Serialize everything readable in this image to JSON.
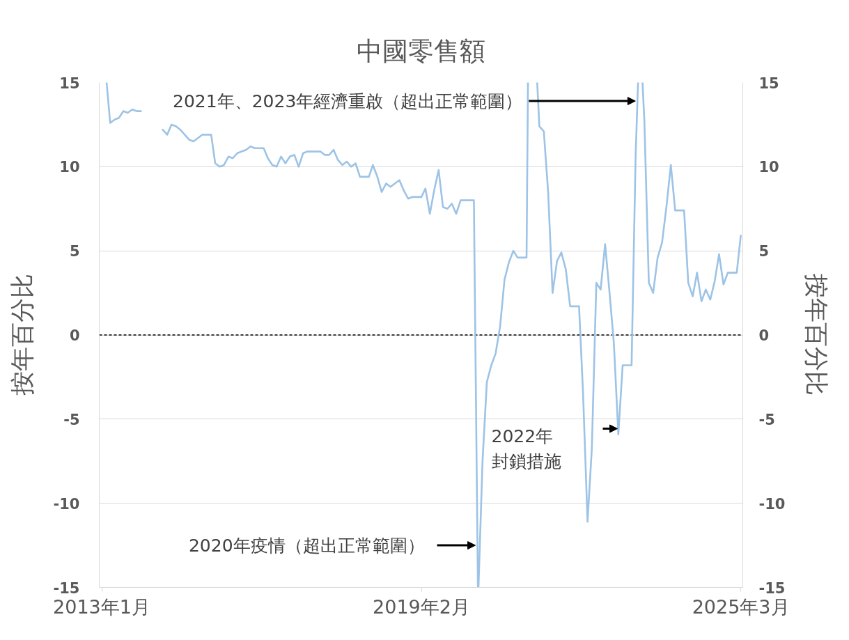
{
  "chart_data": {
    "type": "line",
    "title": "中國零售額",
    "ylabel": "按年百分比",
    "y2label": "按年百分比",
    "x": [
      "2013-02-04",
      "2013-03",
      "2013-04",
      "2013-05",
      "2013-06",
      "2013-07",
      "2013-08",
      "2013-09",
      "2013-10",
      "2013-11",
      "2013-12",
      "2014-01",
      "2014-02",
      "2014-03",
      "2014-04",
      "2014-05",
      "2014-06",
      "2014-07",
      "2014-08",
      "2014-09",
      "2014-10",
      "2014-11",
      "2014-12",
      "2015-01",
      "2015-02",
      "2015-03",
      "2015-04",
      "2015-05",
      "2015-06",
      "2015-07",
      "2015-08",
      "2015-09",
      "2015-10",
      "2015-11",
      "2015-12",
      "2016-01",
      "2016-02",
      "2016-03",
      "2016-04",
      "2016-05",
      "2016-06",
      "2016-07",
      "2016-08",
      "2016-09",
      "2016-10",
      "2016-11",
      "2016-12",
      "2017-01",
      "2017-02",
      "2017-03",
      "2017-04",
      "2017-05",
      "2017-06",
      "2017-07",
      "2017-08",
      "2017-09",
      "2017-10",
      "2017-11",
      "2017-12",
      "2018-01",
      "2018-02",
      "2018-03",
      "2018-04",
      "2018-05",
      "2018-06",
      "2018-07",
      "2018-08",
      "2018-09",
      "2018-10",
      "2018-11",
      "2018-12",
      "2019-01",
      "2019-02",
      "2019-03",
      "2019-04",
      "2019-05",
      "2019-06",
      "2019-07",
      "2019-08",
      "2019-09",
      "2019-10",
      "2019-11",
      "2019-12",
      "2020-01",
      "2020-02",
      "2020-02-29",
      "2020-03",
      "2020-03-04",
      "2020-04",
      "2020-05",
      "2020-06",
      "2020-07",
      "2020-08",
      "2020-09",
      "2020-10",
      "2020-11",
      "2020-12",
      "2021-01",
      "2021-02",
      "2021-02-11",
      "2021-03",
      "2021-04",
      "2021-04-16",
      "2021-05",
      "2021-06",
      "2021-07",
      "2021-08",
      "2021-09",
      "2021-10",
      "2021-11",
      "2021-12",
      "2022-01",
      "2022-02",
      "2022-03",
      "2022-04",
      "2022-05",
      "2022-06",
      "2022-07",
      "2022-08",
      "2022-09",
      "2022-10",
      "2022-11",
      "2022-12",
      "2023-01",
      "2023-02",
      "2023-03",
      "2023-03-18",
      "2023-04",
      "2023-04-18",
      "2023-05",
      "2023-06",
      "2023-07",
      "2023-08",
      "2023-09",
      "2023-10",
      "2023-11",
      "2023-12",
      "2024-01",
      "2024-02",
      "2024-03",
      "2024-04",
      "2024-05",
      "2024-06",
      "2024-07",
      "2024-08",
      "2024-09",
      "2024-10",
      "2024-11",
      "2024-12",
      "2025-01",
      "2025-02",
      "2025-03"
    ],
    "series": [
      {
        "color": "#9dc3e6",
        "values": [
          15,
          12.6,
          12.8,
          12.9,
          13.3,
          13.2,
          13.4,
          13.3,
          13.3,
          null,
          null,
          null,
          null,
          12.2,
          11.9,
          12.5,
          12.4,
          12.2,
          11.9,
          11.6,
          11.5,
          11.7,
          11.9,
          11.9,
          11.9,
          10.2,
          10.0,
          10.1,
          10.6,
          10.5,
          10.8,
          10.9,
          11.0,
          11.2,
          11.1,
          11.1,
          11.1,
          10.5,
          10.1,
          10.0,
          10.6,
          10.2,
          10.6,
          10.7,
          10.0,
          10.8,
          10.9,
          10.9,
          10.9,
          10.9,
          10.7,
          10.7,
          11.0,
          10.4,
          10.1,
          10.3,
          10.0,
          10.2,
          9.4,
          9.4,
          9.4,
          10.1,
          9.4,
          8.5,
          9.0,
          8.8,
          9.0,
          9.2,
          8.6,
          8.1,
          8.2,
          8.2,
          8.2,
          8.7,
          7.2,
          8.6,
          9.8,
          7.6,
          7.5,
          7.8,
          7.2,
          8.0,
          8.0,
          8.0,
          8.0,
          -15,
          null,
          -15,
          -7.5,
          -2.8,
          -1.8,
          -1.1,
          0.5,
          3.3,
          4.3,
          5.0,
          4.6,
          4.6,
          4.6,
          15,
          null,
          null,
          15,
          12.4,
          12.1,
          8.5,
          2.5,
          4.4,
          4.9,
          3.9,
          1.7,
          1.7,
          1.7,
          -3.5,
          -11.1,
          -6.7,
          3.1,
          2.7,
          5.4,
          2.5,
          -0.5,
          -5.9,
          -1.8,
          -1.8,
          -1.8,
          10.6,
          15,
          null,
          15,
          12.7,
          3.1,
          2.5,
          4.6,
          5.5,
          7.6,
          10.1,
          7.4,
          7.4,
          7.4,
          3.1,
          2.3,
          3.7,
          2.0,
          2.7,
          2.1,
          3.2,
          4.8,
          3.0,
          3.7,
          3.7,
          3.7,
          5.9
        ]
      }
    ],
    "xlim": [
      "2012-12-15",
      "2025-03-15"
    ],
    "xticks": [
      {
        "value": "2013-01",
        "label": "2013年1月"
      },
      {
        "value": "2019-02",
        "label": "2019年2月"
      },
      {
        "value": "2025-03",
        "label": "2025年3月"
      }
    ],
    "ylim": [
      -15,
      15
    ],
    "yticks": [
      -15,
      -10,
      -5,
      0,
      5,
      10,
      15
    ],
    "y2lim": [
      -15,
      15
    ],
    "y2ticks": [
      -15,
      -10,
      -5,
      0,
      5,
      10,
      15
    ],
    "grid": "y",
    "ref_lines": [
      {
        "axis": "y",
        "value": 0,
        "color": "#000000",
        "line_style": "dashed"
      }
    ],
    "annotations": [
      {
        "text": "2020年疫情（超出正常範圍）",
        "x": "2020-02-26",
        "y": -12.5
      },
      {
        "text": "2021年、2023年經濟重啟（超出正常範圍）",
        "x": "2023-03-14",
        "y": 13.9
      },
      "2022年封鎖措施"
    ]
  }
}
